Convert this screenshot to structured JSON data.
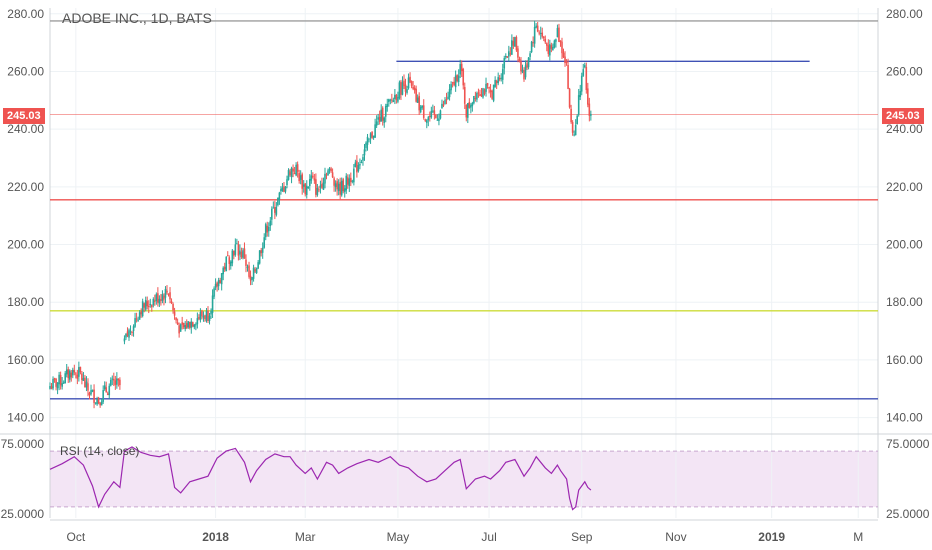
{
  "title": "ADOBE INC., 1D, BATS",
  "rsi_label": "RSI (14, close)",
  "last_price_label": "245.03",
  "colors": {
    "up": "#26a69a",
    "down": "#ef5350",
    "rsi_line": "#9c27b0",
    "rsi_band": "#f3e5f5",
    "hline_top": "#9e9e9e",
    "hline_blue": "#3f51b5",
    "hline_red": "#ef5350",
    "hline_green": "#cddc39",
    "grid": "#eef2f5",
    "axis_text": "#555555"
  },
  "chart_data": [
    {
      "type": "candlestick",
      "title": "ADOBE INC., 1D, BATS",
      "ylim": [
        135,
        282
      ],
      "y_ticks": [
        "140.00",
        "160.00",
        "180.00",
        "200.00",
        "220.00",
        "240.00",
        "260.00",
        "280.00"
      ],
      "y_tick_values": [
        140,
        160,
        180,
        200,
        220,
        240,
        260,
        280
      ],
      "x_tick_labels": [
        "Oct",
        "2018",
        "Mar",
        "May",
        "Jul",
        "Sep",
        "Nov",
        "2019",
        "M"
      ],
      "x_tick_days": [
        17,
        109,
        168,
        229,
        289,
        350,
        412,
        475,
        532
      ],
      "x_domain": [
        0,
        545
      ],
      "last_price": 245.03,
      "horizontal_levels": [
        {
          "price": 277.5,
          "color": "#9e9e9e",
          "from_day": 0,
          "to_day": 545
        },
        {
          "price": 263.5,
          "color": "#3f51b5",
          "from_day": 228,
          "to_day": 500
        },
        {
          "price": 245.03,
          "color": "#ef5350",
          "from_day": 0,
          "to_day": 545,
          "thin": true
        },
        {
          "price": 215.5,
          "color": "#ef5350",
          "from_day": 0,
          "to_day": 545
        },
        {
          "price": 177.0,
          "color": "#cddc39",
          "from_day": 0,
          "to_day": 545
        },
        {
          "price": 146.5,
          "color": "#3f51b5",
          "from_day": 0,
          "to_day": 545
        }
      ],
      "close_path": [
        [
          0,
          151
        ],
        [
          8,
          153
        ],
        [
          14,
          156
        ],
        [
          20,
          155
        ],
        [
          24,
          150
        ],
        [
          28,
          148
        ],
        [
          32,
          146
        ],
        [
          36,
          149
        ],
        [
          42,
          152
        ],
        [
          46,
          151
        ],
        [
          49,
          166
        ],
        [
          54,
          172
        ],
        [
          60,
          178
        ],
        [
          66,
          180
        ],
        [
          72,
          182
        ],
        [
          78,
          184
        ],
        [
          82,
          175
        ],
        [
          86,
          170
        ],
        [
          92,
          173
        ],
        [
          98,
          175
        ],
        [
          104,
          176
        ],
        [
          110,
          186
        ],
        [
          116,
          194
        ],
        [
          122,
          199
        ],
        [
          128,
          196
        ],
        [
          132,
          186
        ],
        [
          136,
          193
        ],
        [
          142,
          205
        ],
        [
          148,
          213
        ],
        [
          154,
          220
        ],
        [
          158,
          226
        ],
        [
          162,
          226
        ],
        [
          168,
          219
        ],
        [
          172,
          223
        ],
        [
          176,
          218
        ],
        [
          182,
          226
        ],
        [
          186,
          224
        ],
        [
          190,
          219
        ],
        [
          196,
          222
        ],
        [
          202,
          227
        ],
        [
          210,
          236
        ],
        [
          216,
          243
        ],
        [
          224,
          249
        ],
        [
          230,
          254
        ],
        [
          236,
          256
        ],
        [
          242,
          249
        ],
        [
          248,
          244
        ],
        [
          254,
          244
        ],
        [
          260,
          249
        ],
        [
          266,
          256
        ],
        [
          270,
          262
        ],
        [
          274,
          246
        ],
        [
          280,
          253
        ],
        [
          286,
          254
        ],
        [
          290,
          252
        ],
        [
          296,
          258
        ],
        [
          300,
          266
        ],
        [
          306,
          270
        ],
        [
          312,
          258
        ],
        [
          316,
          268
        ],
        [
          320,
          276
        ],
        [
          326,
          270
        ],
        [
          330,
          266
        ],
        [
          334,
          274
        ],
        [
          336,
          270
        ],
        [
          340,
          263
        ],
        [
          342,
          246
        ],
        [
          344,
          239
        ],
        [
          346,
          240
        ],
        [
          348,
          254
        ],
        [
          352,
          260
        ],
        [
          354,
          248
        ],
        [
          356,
          245
        ]
      ]
    },
    {
      "type": "line",
      "title": "RSI (14, close)",
      "ylim": [
        22,
        78
      ],
      "y_ticks": [
        "25.0000",
        "75.0000"
      ],
      "y_tick_values": [
        25,
        75
      ],
      "band": [
        30,
        70
      ],
      "x_domain": [
        0,
        545
      ],
      "values": [
        [
          0,
          57
        ],
        [
          8,
          61
        ],
        [
          16,
          66
        ],
        [
          22,
          60
        ],
        [
          28,
          45
        ],
        [
          32,
          30
        ],
        [
          36,
          39
        ],
        [
          42,
          48
        ],
        [
          46,
          44
        ],
        [
          49,
          70
        ],
        [
          54,
          73
        ],
        [
          60,
          69
        ],
        [
          66,
          67
        ],
        [
          72,
          66
        ],
        [
          78,
          68
        ],
        [
          82,
          44
        ],
        [
          86,
          40
        ],
        [
          92,
          48
        ],
        [
          98,
          50
        ],
        [
          104,
          52
        ],
        [
          110,
          65
        ],
        [
          116,
          70
        ],
        [
          122,
          72
        ],
        [
          128,
          62
        ],
        [
          132,
          48
        ],
        [
          136,
          56
        ],
        [
          142,
          64
        ],
        [
          148,
          68
        ],
        [
          154,
          66
        ],
        [
          158,
          66
        ],
        [
          162,
          60
        ],
        [
          168,
          54
        ],
        [
          172,
          58
        ],
        [
          176,
          50
        ],
        [
          182,
          62
        ],
        [
          186,
          60
        ],
        [
          190,
          54
        ],
        [
          196,
          58
        ],
        [
          202,
          61
        ],
        [
          210,
          64
        ],
        [
          216,
          62
        ],
        [
          224,
          66
        ],
        [
          230,
          60
        ],
        [
          236,
          58
        ],
        [
          242,
          52
        ],
        [
          248,
          48
        ],
        [
          254,
          50
        ],
        [
          260,
          56
        ],
        [
          266,
          62
        ],
        [
          270,
          64
        ],
        [
          274,
          43
        ],
        [
          280,
          50
        ],
        [
          286,
          52
        ],
        [
          290,
          50
        ],
        [
          296,
          56
        ],
        [
          300,
          62
        ],
        [
          306,
          64
        ],
        [
          312,
          52
        ],
        [
          316,
          58
        ],
        [
          320,
          66
        ],
        [
          326,
          58
        ],
        [
          330,
          54
        ],
        [
          334,
          60
        ],
        [
          336,
          56
        ],
        [
          340,
          50
        ],
        [
          342,
          36
        ],
        [
          344,
          28
        ],
        [
          346,
          30
        ],
        [
          348,
          42
        ],
        [
          352,
          48
        ],
        [
          354,
          44
        ],
        [
          356,
          42
        ]
      ]
    }
  ]
}
